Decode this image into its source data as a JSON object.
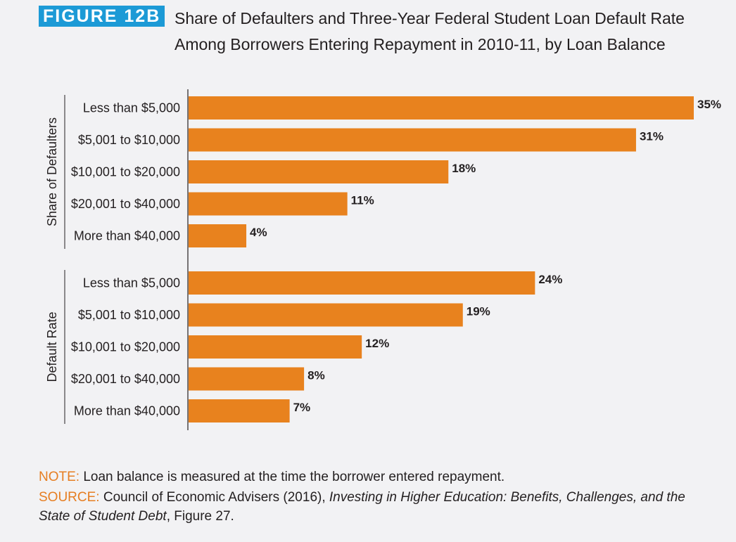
{
  "figure": {
    "label": "FIGURE 12B",
    "title": "Share of Defaulters and Three-Year Federal Student Loan Default Rate Among Borrowers Entering Repayment in 2010-11, by Loan Balance"
  },
  "colors": {
    "bar": "#e8821e",
    "label_bg": "#1c9ad6",
    "tag": "#e67e22"
  },
  "chart_data": {
    "type": "bar",
    "orientation": "horizontal",
    "xlim": [
      0,
      35
    ],
    "grid": false,
    "groups": [
      {
        "name": "Share of Defaulters",
        "categories": [
          "Less than $5,000",
          "$5,001 to $10,000",
          "$10,001 to $20,000",
          "$20,001 to $40,000",
          "More than $40,000"
        ],
        "values": [
          35,
          31,
          18,
          11,
          4
        ],
        "value_labels": [
          "35%",
          "31%",
          "18%",
          "11%",
          "4%"
        ]
      },
      {
        "name": "Default Rate",
        "categories": [
          "Less than $5,000",
          "$5,001 to $10,000",
          "$10,001 to $20,000",
          "$20,001 to $40,000",
          "More than $40,000"
        ],
        "values": [
          24,
          19,
          12,
          8,
          7
        ],
        "value_labels": [
          "24%",
          "19%",
          "12%",
          "8%",
          "7%"
        ]
      }
    ]
  },
  "notes": {
    "note_tag": "NOTE:",
    "note_text": " Loan balance is measured at the time the borrower entered repayment.",
    "source_tag": "SOURCE:",
    "source_text_1": " Council of Economic Advisers (2016), ",
    "source_italic": "Investing in Higher Education: Benefits, Challenges, and the State of Student Debt",
    "source_text_2": ", Figure 27."
  }
}
